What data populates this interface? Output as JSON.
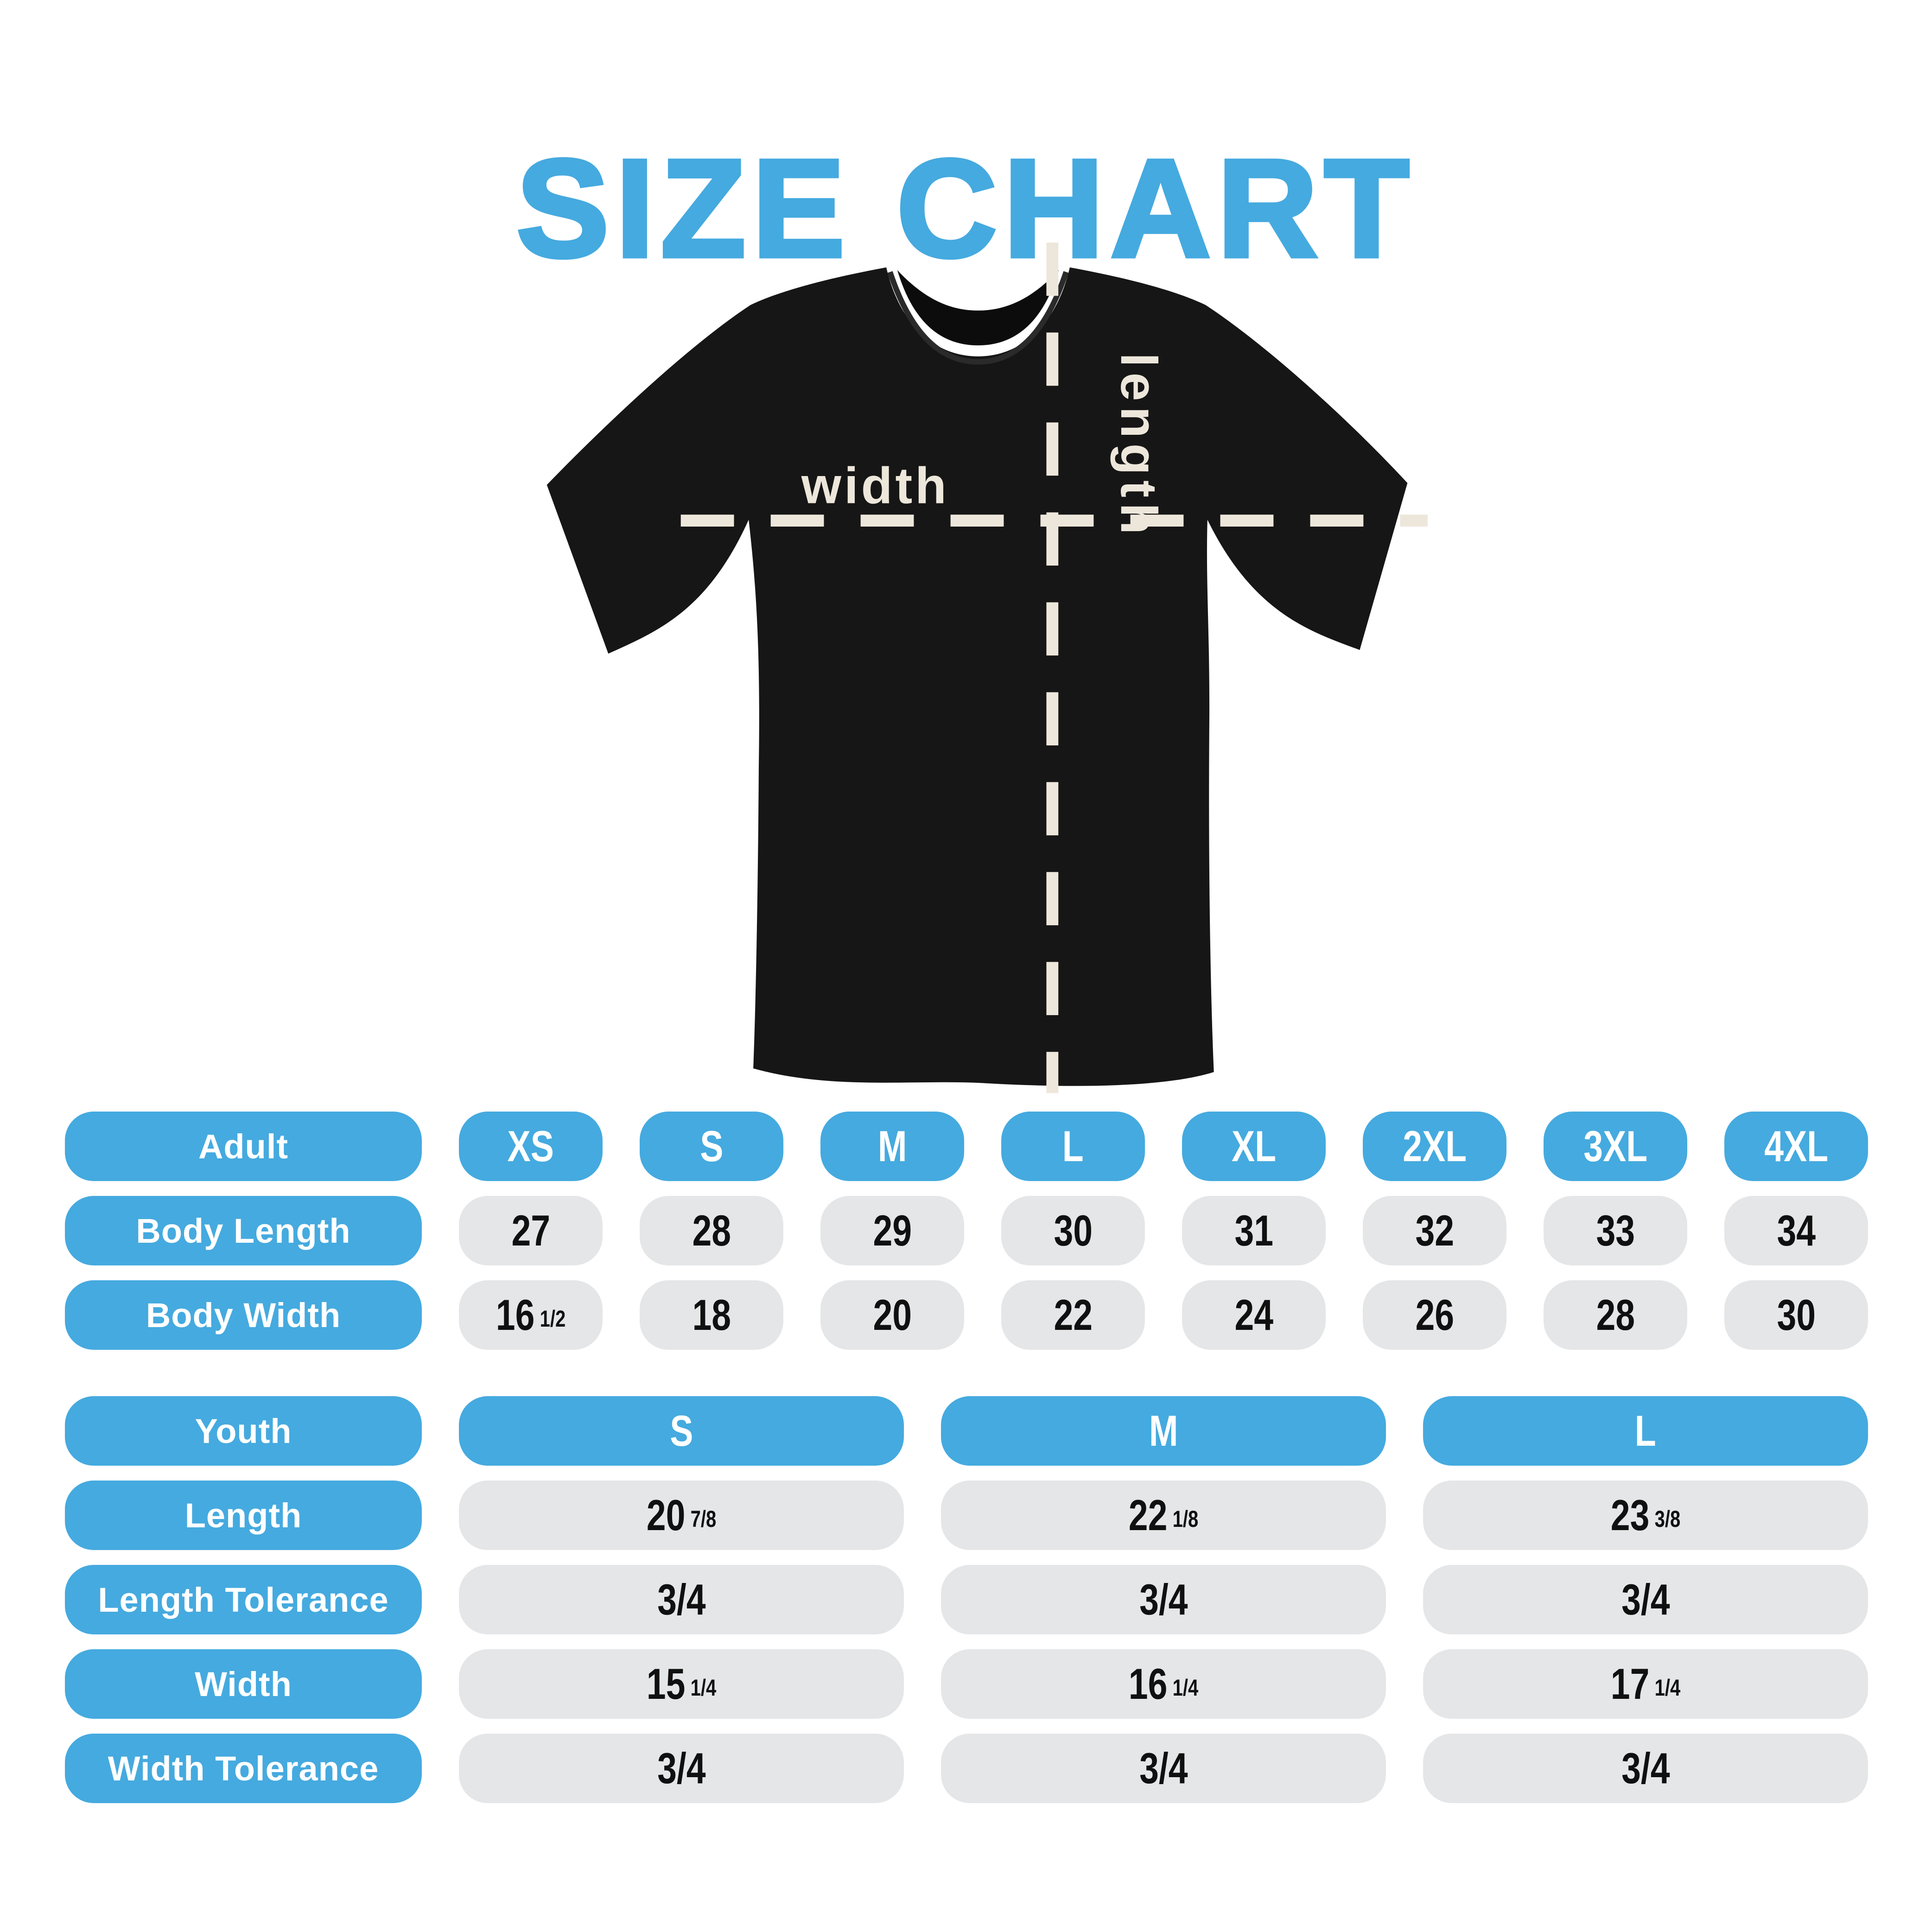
{
  "title": "SIZE CHART",
  "colors": {
    "accent_blue": "#45AADF",
    "cell_gray": "#E4E6E8",
    "shirt_black": "#161616",
    "measure_line_cream": "#EDE7DB",
    "background": "#FFFFFF",
    "cell_text": "#101010"
  },
  "shirt": {
    "width_label": "width",
    "length_label": "length"
  },
  "tables": {
    "adult": {
      "header_label": "Adult",
      "sizes": [
        "XS",
        "S",
        "M",
        "L",
        "XL",
        "2XL",
        "3XL",
        "4XL"
      ],
      "rows": [
        {
          "label": "Body Length",
          "cells": [
            {
              "v": "27"
            },
            {
              "v": "28"
            },
            {
              "v": "29"
            },
            {
              "v": "30"
            },
            {
              "v": "31"
            },
            {
              "v": "32"
            },
            {
              "v": "33"
            },
            {
              "v": "34"
            }
          ]
        },
        {
          "label": "Body Width",
          "cells": [
            {
              "v": "16",
              "f": "1/2"
            },
            {
              "v": "18"
            },
            {
              "v": "20"
            },
            {
              "v": "22"
            },
            {
              "v": "24"
            },
            {
              "v": "26"
            },
            {
              "v": "28"
            },
            {
              "v": "30"
            }
          ]
        }
      ]
    },
    "youth": {
      "header_label": "Youth",
      "sizes": [
        "S",
        "M",
        "L"
      ],
      "rows": [
        {
          "label": "Length",
          "cells": [
            {
              "v": "20",
              "f": "7/8"
            },
            {
              "v": "22",
              "f": "1/8"
            },
            {
              "v": "23",
              "f": "3/8"
            }
          ]
        },
        {
          "label": "Length Tolerance",
          "cells": [
            {
              "v": "3/4"
            },
            {
              "v": "3/4"
            },
            {
              "v": "3/4"
            }
          ]
        },
        {
          "label": "Width",
          "cells": [
            {
              "v": "15",
              "f": "1/4"
            },
            {
              "v": "16",
              "f": "1/4"
            },
            {
              "v": "17",
              "f": "1/4"
            }
          ]
        },
        {
          "label": "Width Tolerance",
          "cells": [
            {
              "v": "3/4"
            },
            {
              "v": "3/4"
            },
            {
              "v": "3/4"
            }
          ]
        }
      ]
    }
  },
  "chart_data": [
    {
      "type": "table",
      "title": "Adult",
      "columns": [
        "XS",
        "S",
        "M",
        "L",
        "XL",
        "2XL",
        "3XL",
        "4XL"
      ],
      "rows": [
        {
          "label": "Body Length",
          "values": [
            27,
            28,
            29,
            30,
            31,
            32,
            33,
            34
          ]
        },
        {
          "label": "Body Width",
          "values": [
            16.5,
            18,
            20,
            22,
            24,
            26,
            28,
            30
          ]
        }
      ]
    },
    {
      "type": "table",
      "title": "Youth",
      "columns": [
        "S",
        "M",
        "L"
      ],
      "rows": [
        {
          "label": "Length",
          "values": [
            "20 7/8",
            "22 1/8",
            "23 3/8"
          ]
        },
        {
          "label": "Length Tolerance",
          "values": [
            "3/4",
            "3/4",
            "3/4"
          ]
        },
        {
          "label": "Width",
          "values": [
            "15 1/4",
            "16 1/4",
            "17 1/4"
          ]
        },
        {
          "label": "Width Tolerance",
          "values": [
            "3/4",
            "3/4",
            "3/4"
          ]
        }
      ]
    }
  ]
}
